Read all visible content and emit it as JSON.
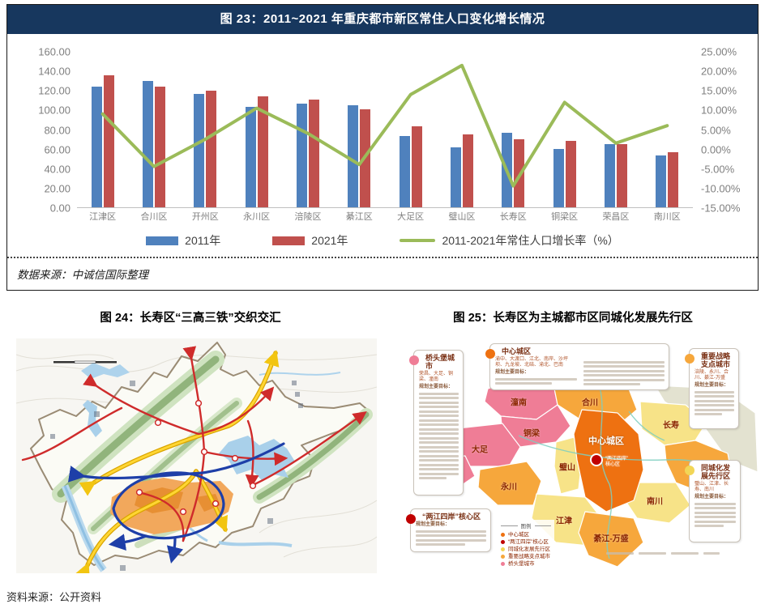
{
  "page": {
    "figure23": {
      "title": "图 23：2011~2021 年重庆都市新区常住人口变化增长情况",
      "source": "数据来源：中诚信国际整理"
    },
    "figure24": {
      "caption": "图 24：长寿区“三高三铁”交织交汇"
    },
    "figure25": {
      "caption": "图 25：长寿区为主城都市区同城化发展先行区"
    },
    "footer_source": "资料来源：公开资料"
  },
  "chart_data": {
    "type": "bar",
    "title": "2011~2021 年重庆都市新区常住人口变化增长情况",
    "categories": [
      "江津区",
      "合川区",
      "开州区",
      "永川区",
      "涪陵区",
      "綦江区",
      "大足区",
      "璧山区",
      "长寿区",
      "铜梁区",
      "荣昌区",
      "南川区"
    ],
    "series": [
      {
        "name": "2011年",
        "type": "bar",
        "color": "#4F81BD",
        "values": [
          124,
          130,
          117,
          103,
          107,
          105,
          73,
          62,
          77,
          60,
          65,
          53
        ]
      },
      {
        "name": "2021年",
        "type": "bar",
        "color": "#C0504D",
        "values": [
          136,
          124,
          120,
          114,
          111,
          101,
          83,
          75,
          70,
          68,
          65,
          57
        ]
      },
      {
        "name": "2011-2021年常住人口增长率（%）",
        "type": "line",
        "color": "#9BBB59",
        "axis": "right",
        "values": [
          9.0,
          -4.5,
          2.5,
          10.5,
          4.0,
          -4.0,
          14.0,
          21.5,
          -9.5,
          12.0,
          1.5,
          6.0
        ]
      }
    ],
    "left_axis": {
      "min": 0,
      "max": 160,
      "step": 20,
      "labels": [
        "160.00",
        "140.00",
        "120.00",
        "100.00",
        "80.00",
        "60.00",
        "40.00",
        "20.00",
        "0.00"
      ]
    },
    "right_axis": {
      "min": -15,
      "max": 25,
      "step": 5,
      "labels": [
        "25.00%",
        "20.00%",
        "15.00%",
        "10.00%",
        "5.00%",
        "0.00%",
        "-5.00%",
        "-10.00%",
        "-15.00%"
      ]
    },
    "grid": false,
    "legend_position": "bottom"
  },
  "map25": {
    "colors": {
      "central": "#EE7111",
      "core": "#C00000",
      "tongcheng": "#F7E388",
      "strategic": "#F6A73C",
      "bridgehead": "#EF7D96",
      "outside": "#E3E2D0"
    },
    "regions": [
      {
        "label": "潼南"
      },
      {
        "label": "合川"
      },
      {
        "label": "铜梁"
      },
      {
        "label": "大足"
      },
      {
        "label": "荣昌"
      },
      {
        "label": "永川"
      },
      {
        "label": "璧山"
      },
      {
        "label": "中心城区"
      },
      {
        "label": "长寿"
      },
      {
        "label": "涪陵"
      },
      {
        "label": "江津"
      },
      {
        "label": "南川"
      },
      {
        "label": "綦江-万盛"
      }
    ],
    "core_label": "“两江四岸”\n核心区",
    "callouts": [
      {
        "title": "桥头堡城市",
        "cities": "荣昌、大足、铜梁、潼南",
        "goal": "规划主要目标："
      },
      {
        "title": "中心城区",
        "cities": "渝中、大渡口、江北、南岸、沙坪坝、九龙坡、北碚、渝北、巴南",
        "goal": "规划主要目标："
      },
      {
        "title": "重要战略支点城市",
        "cities": "涪陵、永川、合川、綦江-万盛",
        "goal": "规划主要目标："
      },
      {
        "title": "同城化发展先行区",
        "cities": "璧山、江津、长寿、南川",
        "goal": "规划主要目标："
      },
      {
        "title": "“两江四岸”核心区",
        "cities": "",
        "goal": "规划主要目标："
      }
    ],
    "legend": {
      "title": "图例",
      "items": [
        {
          "label": "中心城区"
        },
        {
          "label": "“两江四岸”核心区"
        },
        {
          "label": "同城化发展先行区"
        },
        {
          "label": "重要战略支点城市"
        },
        {
          "label": "桥头堡城市"
        }
      ]
    }
  }
}
